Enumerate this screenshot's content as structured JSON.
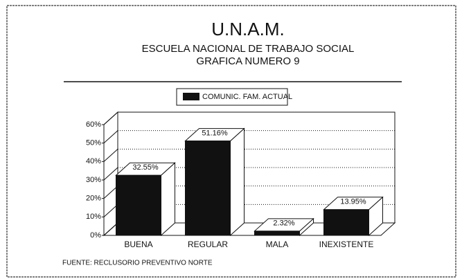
{
  "chart_data": {
    "type": "bar3d",
    "title": "U.N.A.M.",
    "subtitle": [
      "ESCUELA NACIONAL DE TRABAJO SOCIAL",
      "GRAFICA NUMERO 9"
    ],
    "categories": [
      "BUENA",
      "REGULAR",
      "MALA",
      "INEXISTENTE"
    ],
    "series": [
      {
        "name": "COMUNIC. FAM. ACTUAL",
        "color": "#111111",
        "values": [
          32.55,
          51.16,
          2.32,
          13.95
        ],
        "value_labels": [
          "32.55%",
          "51.16%",
          "2.32%",
          "13.95%"
        ]
      }
    ],
    "ylim": [
      0,
      60
    ],
    "yticks": [
      {
        "value": 0,
        "label": "0%"
      },
      {
        "value": 10,
        "label": "10%"
      },
      {
        "value": 20,
        "label": "20%"
      },
      {
        "value": 30,
        "label": "30%"
      },
      {
        "value": 40,
        "label": "40%"
      },
      {
        "value": 50,
        "label": "50%"
      },
      {
        "value": 60,
        "label": "60%"
      }
    ],
    "grid": true,
    "source": "FUENTE: RECLUSORIO PREVENTIVO NORTE"
  }
}
